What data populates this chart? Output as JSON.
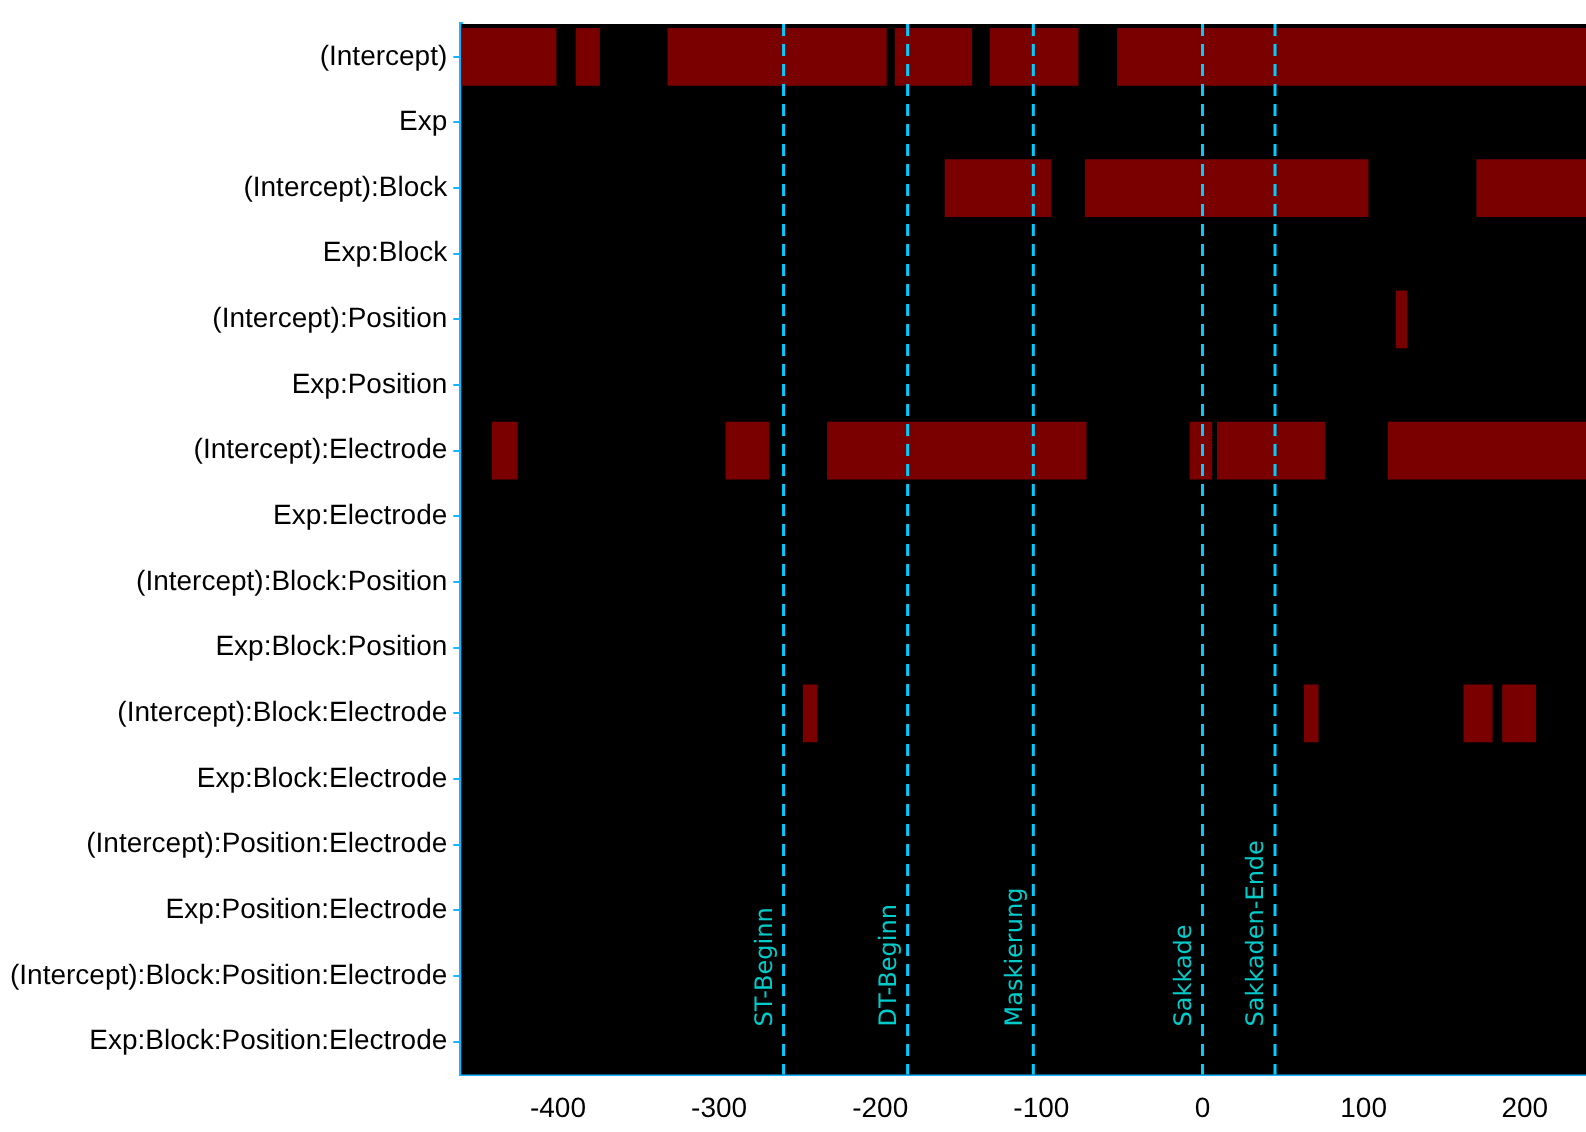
{
  "chart_data": {
    "type": "bar",
    "orientation": "horizontal",
    "categories": [
      "(Intercept)",
      "Exp",
      "(Intercept):Block",
      "Exp:Block",
      "(Intercept):Position",
      "Exp:Position",
      "(Intercept):Electrode",
      "Exp:Electrode",
      "(Intercept):Block:Position",
      "Exp:Block:Position",
      "(Intercept):Block:Electrode",
      "Exp:Block:Electrode",
      "(Intercept):Position:Electrode",
      "Exp:Position:Electrode",
      "(Intercept):Block:Position:Electrode",
      "Exp:Block:Position:Electrode"
    ],
    "series": [
      {
        "color": "#7a0000",
        "base": [
          -460,
          null,
          -160,
          null,
          120,
          null,
          -441,
          null,
          null,
          null,
          -248,
          null,
          null,
          null,
          null,
          null
        ],
        "values": [
          59,
          null,
          66,
          null,
          7,
          null,
          16,
          null,
          null,
          null,
          9,
          null,
          null,
          null,
          null,
          null
        ]
      },
      {
        "color": "#7a0000",
        "base": [
          -389,
          null,
          -73,
          null,
          null,
          null,
          -296,
          null,
          null,
          null,
          63,
          null,
          null,
          null,
          null,
          null
        ],
        "values": [
          15,
          null,
          176,
          null,
          null,
          null,
          27,
          null,
          null,
          null,
          9,
          null,
          null,
          null,
          null,
          null
        ]
      },
      {
        "color": "#7a0000",
        "base": [
          -332,
          null,
          170,
          null,
          null,
          null,
          -233,
          null,
          null,
          null,
          162,
          null,
          null,
          null,
          null,
          null
        ],
        "values": [
          136,
          null,
          68,
          null,
          null,
          null,
          161,
          null,
          null,
          null,
          18,
          null,
          null,
          null,
          null,
          null
        ]
      },
      {
        "color": "#7a0000",
        "base": [
          -191,
          null,
          null,
          null,
          null,
          null,
          -8,
          null,
          null,
          null,
          186,
          null,
          null,
          null,
          null,
          null
        ],
        "values": [
          48,
          null,
          null,
          null,
          null,
          null,
          14,
          null,
          null,
          null,
          21,
          null,
          null,
          null,
          null,
          null
        ]
      },
      {
        "color": "#7a0000",
        "base": [
          -132,
          null,
          null,
          null,
          null,
          null,
          9,
          null,
          null,
          null,
          null,
          null,
          null,
          null,
          null,
          null
        ],
        "values": [
          55,
          null,
          null,
          null,
          null,
          null,
          67,
          null,
          null,
          null,
          null,
          null,
          null,
          null,
          null,
          null
        ]
      },
      {
        "color": "#7a0000",
        "base": [
          -53,
          null,
          null,
          null,
          null,
          null,
          115,
          null,
          null,
          null,
          null,
          null,
          null,
          null,
          null,
          null
        ],
        "values": [
          291,
          null,
          null,
          null,
          null,
          null,
          123,
          null,
          null,
          null,
          null,
          null,
          null,
          null,
          null,
          null
        ]
      }
    ],
    "xlim": [
      -460,
      238
    ],
    "xticks": [
      -400,
      -300,
      -200,
      -100,
      0,
      100,
      200
    ],
    "ref_lines": [
      {
        "axis": "x",
        "value": -260,
        "label": "ST-Beginn",
        "color": "#00ccff",
        "line_style": "dashed"
      },
      {
        "axis": "x",
        "value": -183,
        "label": "DT-Beginn",
        "color": "#00ccff",
        "line_style": "dashed"
      },
      {
        "axis": "x",
        "value": -105,
        "label": "Maskierung",
        "color": "#00ccff",
        "line_style": "dashed"
      },
      {
        "axis": "x",
        "value": 0,
        "label": "Sakkade",
        "color": "#00ccff",
        "line_style": "dashed"
      },
      {
        "axis": "x",
        "value": 45,
        "label": "Sakkaden-Ende",
        "color": "#00ccff",
        "line_style": "dashed"
      }
    ]
  }
}
